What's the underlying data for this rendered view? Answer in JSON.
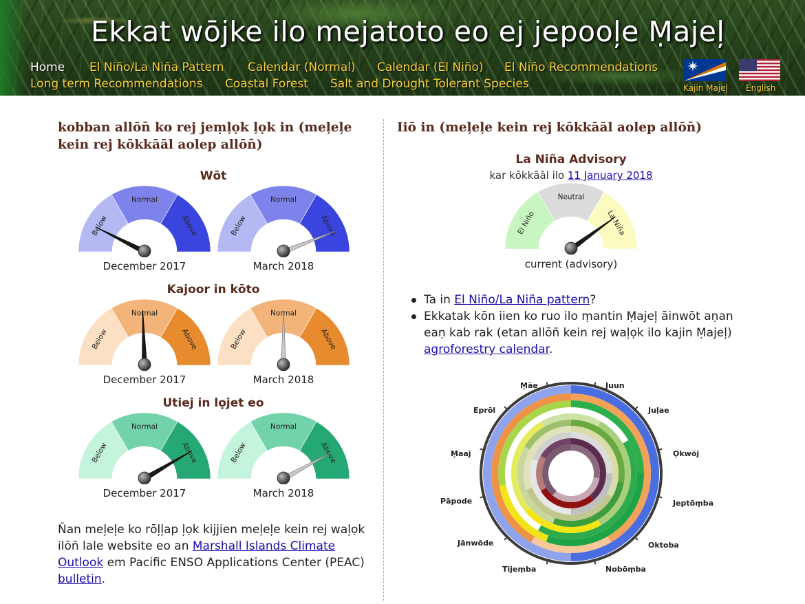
{
  "header": {
    "title": "Ekkat wōjke ilo mejatoto eo ej jepooļe Ṃajeļ",
    "nav": [
      {
        "label": "Home",
        "active": true
      },
      {
        "label": "El Niño/La Niña Pattern"
      },
      {
        "label": "Calendar (Normal)"
      },
      {
        "label": "Calendar (El Niño)"
      },
      {
        "label": "El Niño Recommendations"
      },
      {
        "label": "Long term Recommendations"
      },
      {
        "label": "Coastal Forest"
      },
      {
        "label": "Salt and Drought Tolerant Species"
      }
    ],
    "languages": [
      {
        "label": "Kajin Ṃajeļ",
        "icon": "marshall-islands-flag-icon"
      },
      {
        "label": "English",
        "icon": "usa-flag-icon"
      }
    ]
  },
  "left": {
    "title": "kobban allōn̄ ko rej jeṃļọk ļọk in (meļeļe kein rej kōkkāāl aolep allōn̄)",
    "gauge_labels": {
      "below": "Below",
      "normal": "Normal",
      "above": "Above"
    },
    "groups": [
      {
        "heading": "Wōt",
        "palette": "blue",
        "gauges": [
          {
            "date": "December 2017",
            "value": 0.15,
            "needle": "dark"
          },
          {
            "date": "March 2018",
            "value": 0.88,
            "needle": "light"
          }
        ]
      },
      {
        "heading": "Kajoor in kōto",
        "palette": "orange",
        "gauges": [
          {
            "date": "December 2017",
            "value": 0.49,
            "needle": "dark"
          },
          {
            "date": "March 2018",
            "value": 0.5,
            "needle": "light"
          }
        ]
      },
      {
        "heading": "Utiej in lọjet eo",
        "palette": "green",
        "gauges": [
          {
            "date": "December 2017",
            "value": 0.83,
            "needle": "dark"
          },
          {
            "date": "March 2018",
            "value": 0.84,
            "needle": "light"
          }
        ]
      }
    ],
    "footer": {
      "text1": "Ñan meļeļe ko rōļļap ļọk kijjien meļeļe kein rej waļọk ilōn̄ lale website eo an ",
      "link1": "Marshall Islands Climate Outlook",
      "text2": " em Pacific ENSO Applications Center (PEAC) ",
      "link2": "bulletin",
      "text3": "."
    }
  },
  "right": {
    "title": "Iiō in (meļeļe kein rej kōkkāāl aolep allōn̄)",
    "advisory": {
      "title": "La Niña Advisory",
      "updated_prefix": "kar kōkkāāl ilo ",
      "updated_link": "11 January 2018",
      "labels": {
        "elnino": "El Niño",
        "neutral": "Neutral",
        "lanina": "La Niña"
      },
      "value": 0.8,
      "caption": "current (advisory)"
    },
    "bullets": [
      {
        "text1": "Ta in ",
        "link": "El Niño/La Niña pattern",
        "text2": "?"
      },
      {
        "text1": "Ekkatak kōn iien ko ruo ilo ṃantin Ṃajeļ āinwōt aṇan eaṇ kab rak (etan allōn̄ kein rej waļọk ilo kajin Ṃajeļ) ",
        "link": "agroforestry calendar",
        "text2": "."
      }
    ],
    "calendar_months": [
      "Jānwōde",
      "Pāpode",
      "Ṃaaj",
      "Eprōl",
      "Ṃāe",
      "Juun",
      "Juļae",
      "Ọkwōj",
      "Jeptōṃba",
      "Oktoba",
      "Nobōṃba",
      "Tijeṃba"
    ]
  },
  "colors": {
    "blue": [
      "#b4b9f3",
      "#7d83ea",
      "#3a45de"
    ],
    "orange": [
      "#fbe0c4",
      "#f3b47a",
      "#e88a2e"
    ],
    "green": [
      "#c5f4dc",
      "#72d3ab",
      "#25a874"
    ],
    "enso": [
      "#c8f6c0",
      "#dcdcdc",
      "#fbfbc0"
    ]
  }
}
